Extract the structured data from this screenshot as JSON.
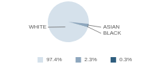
{
  "chart_data": {
    "type": "pie",
    "categories": [
      "WHITE",
      "ASIAN",
      "BLACK"
    ],
    "values": [
      97.4,
      2.3,
      0.3
    ],
    "value_labels": [
      "97.4%",
      "2.3%",
      "0.3%"
    ],
    "colors": [
      "#d5e1eb",
      "#8ea7be",
      "#2f5e7e"
    ],
    "legend": "bottom"
  }
}
